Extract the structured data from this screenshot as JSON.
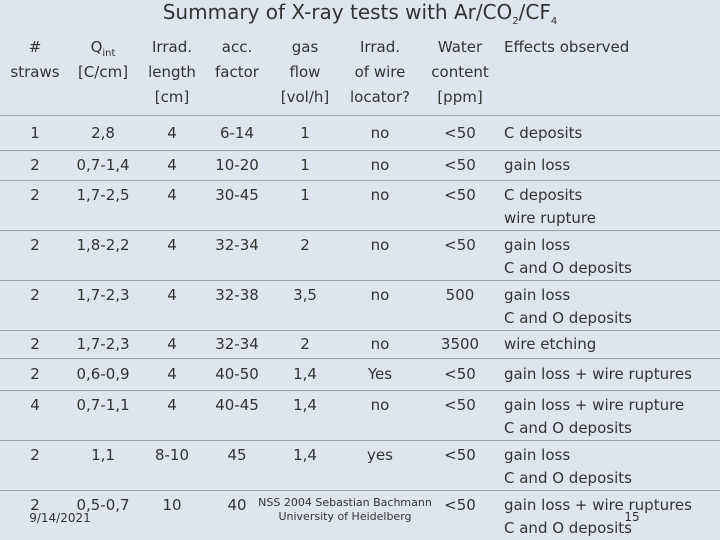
{
  "title": [
    {
      "text": "Summary of X-ray tests with Ar/CO"
    },
    {
      "text": "2",
      "sub": true
    },
    {
      "text": "/CF"
    },
    {
      "text": "4",
      "sub": true
    }
  ],
  "table": {
    "header": [
      {
        "lines": [
          "#",
          "straws"
        ]
      },
      {
        "lines": [
          {
            "text": "Q",
            "sub": "int"
          },
          "[C/cm]"
        ]
      },
      {
        "lines": [
          "Irrad.",
          "length",
          "[cm]"
        ]
      },
      {
        "lines": [
          "acc.",
          "factor"
        ]
      },
      {
        "lines": [
          "gas",
          "flow",
          "[vol/h]"
        ]
      },
      {
        "lines": [
          "Irrad.",
          "of wire",
          "locator?"
        ]
      },
      {
        "lines": [
          "Water",
          "content",
          "[ppm]"
        ]
      },
      {
        "lines": [
          "Effects observed"
        ]
      }
    ],
    "rows": [
      {
        "cells": [
          "1",
          "2,8",
          "4",
          "6-14",
          "1",
          "no",
          "<50"
        ],
        "effects": [
          "C deposits"
        ]
      },
      {
        "cells": [
          "2",
          "0,7-1,4",
          "4",
          "10-20",
          "1",
          "no",
          "<50"
        ],
        "effects": [
          "gain loss"
        ]
      },
      {
        "cells": [
          "2",
          "1,7-2,5",
          "4",
          "30-45",
          "1",
          "no",
          "<50"
        ],
        "effects": [
          "C deposits",
          "wire rupture"
        ]
      },
      {
        "cells": [
          "2",
          "1,8-2,2",
          "4",
          "32-34",
          "2",
          "no",
          "<50"
        ],
        "effects": [
          "gain loss",
          "C and O deposits"
        ]
      },
      {
        "cells": [
          "2",
          "1,7-2,3",
          "4",
          "32-38",
          "3,5",
          "no",
          "500"
        ],
        "effects": [
          "gain loss",
          "C and O deposits"
        ]
      },
      {
        "cells": [
          "2",
          "1,7-2,3",
          "4",
          "32-34",
          "2",
          "no",
          "3500"
        ],
        "effects": [
          "wire etching"
        ]
      },
      {
        "cells": [
          "2",
          "0,6-0,9",
          "4",
          "40-50",
          "1,4",
          "Yes",
          "<50"
        ],
        "effects": [
          "gain loss + wire ruptures"
        ]
      },
      {
        "cells": [
          "4",
          "0,7-1,1",
          "4",
          "40-45",
          "1,4",
          "no",
          "<50"
        ],
        "effects": [
          "gain loss + wire rupture",
          "C and O deposits"
        ]
      },
      {
        "cells": [
          "2",
          "1,1",
          "8-10",
          "45",
          "1,4",
          "yes",
          "<50"
        ],
        "effects": [
          "gain loss",
          "C and O deposits"
        ]
      },
      {
        "cells": [
          "2",
          "0,5-0,7",
          "10",
          "40",
          null,
          null,
          "<50"
        ],
        "effects": [
          "gain loss + wire ruptures",
          "C and O deposits"
        ]
      }
    ]
  },
  "footer": {
    "date": "9/14/2021",
    "lines": [
      "NSS 2004 Sebastian Bachmann",
      "University of Heidelberg"
    ],
    "page": "15"
  }
}
